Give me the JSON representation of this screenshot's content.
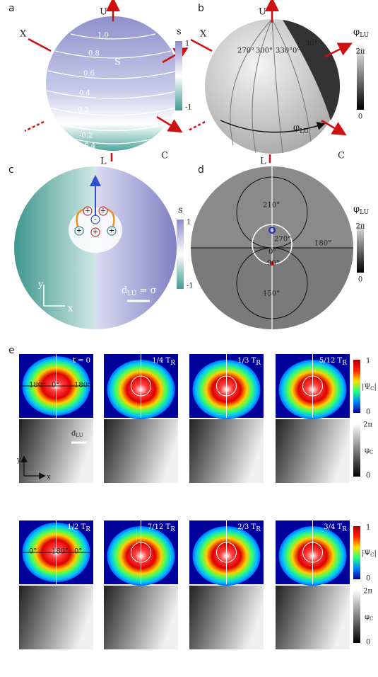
{
  "panel_a": {
    "label": "a",
    "axes": {
      "up": "U",
      "left": "X",
      "right": "C",
      "down": "L"
    },
    "contour_labels": [
      "1.0",
      "0.8",
      "0.6",
      "0.4",
      "0.2",
      "0",
      "-0.2",
      "-0.4"
    ],
    "surface_label": "S",
    "colorbar": {
      "title": "s",
      "max": "1",
      "min": "-1"
    }
  },
  "panel_b": {
    "label": "b",
    "axes": {
      "up": "U",
      "left": "X",
      "right": "C",
      "down": "L"
    },
    "meridian_labels": [
      "270°",
      "300°",
      "330°",
      "0°",
      "30°"
    ],
    "phase_symbol": {
      "symbol": "φ",
      "sub": "LU"
    },
    "colorbar": {
      "symbol": "φ",
      "sub": "LU",
      "max": "2π",
      "min": "0"
    }
  },
  "panel_c": {
    "label": "c",
    "colorbar": {
      "title": "s",
      "max": "1",
      "min": "-1"
    },
    "axes": {
      "y": "y",
      "x": "x"
    },
    "scale_bar": {
      "symbol": "d",
      "sub": "LU",
      "rest": " = σ"
    },
    "charges": [
      "-",
      "+",
      "+",
      "+",
      "+",
      "+"
    ]
  },
  "panel_d": {
    "label": "d",
    "angle_labels": [
      "210°",
      "270°",
      "180°",
      "0°",
      "90°",
      "150°"
    ],
    "colorbar": {
      "symbol": "φ",
      "sub": "LU",
      "max": "2π",
      "min": "0"
    }
  },
  "panel_e": {
    "label": "e",
    "rows": [
      {
        "frames": [
          {
            "time": "t = 0"
          },
          {
            "time": "1/4 T",
            "sub": "R"
          },
          {
            "time": "1/3 T",
            "sub": "R"
          },
          {
            "time": "5/12 T",
            "sub": "R"
          }
        ],
        "angle_labels": [
          "180°",
          "0°",
          "180°"
        ]
      },
      {
        "frames": [
          {
            "time": "1/2 T",
            "sub": "R"
          },
          {
            "time": "7/12 T",
            "sub": "R"
          },
          {
            "time": "2/3 T",
            "sub": "R"
          },
          {
            "time": "3/4 T",
            "sub": "R"
          }
        ],
        "angle_labels": [
          "0°",
          "180°",
          "0°"
        ]
      }
    ],
    "amplitude_colorbar": {
      "max": "1",
      "symbol": "|Ψ",
      "sub": "C",
      "end": "|",
      "min": "0"
    },
    "phase_colorbar": {
      "max": "2π",
      "symbol": "φ",
      "sub": "C",
      "min": "0"
    },
    "scale_bar": {
      "symbol": "d",
      "sub": "LU"
    },
    "axes": {
      "y": "y",
      "x": "x"
    }
  }
}
